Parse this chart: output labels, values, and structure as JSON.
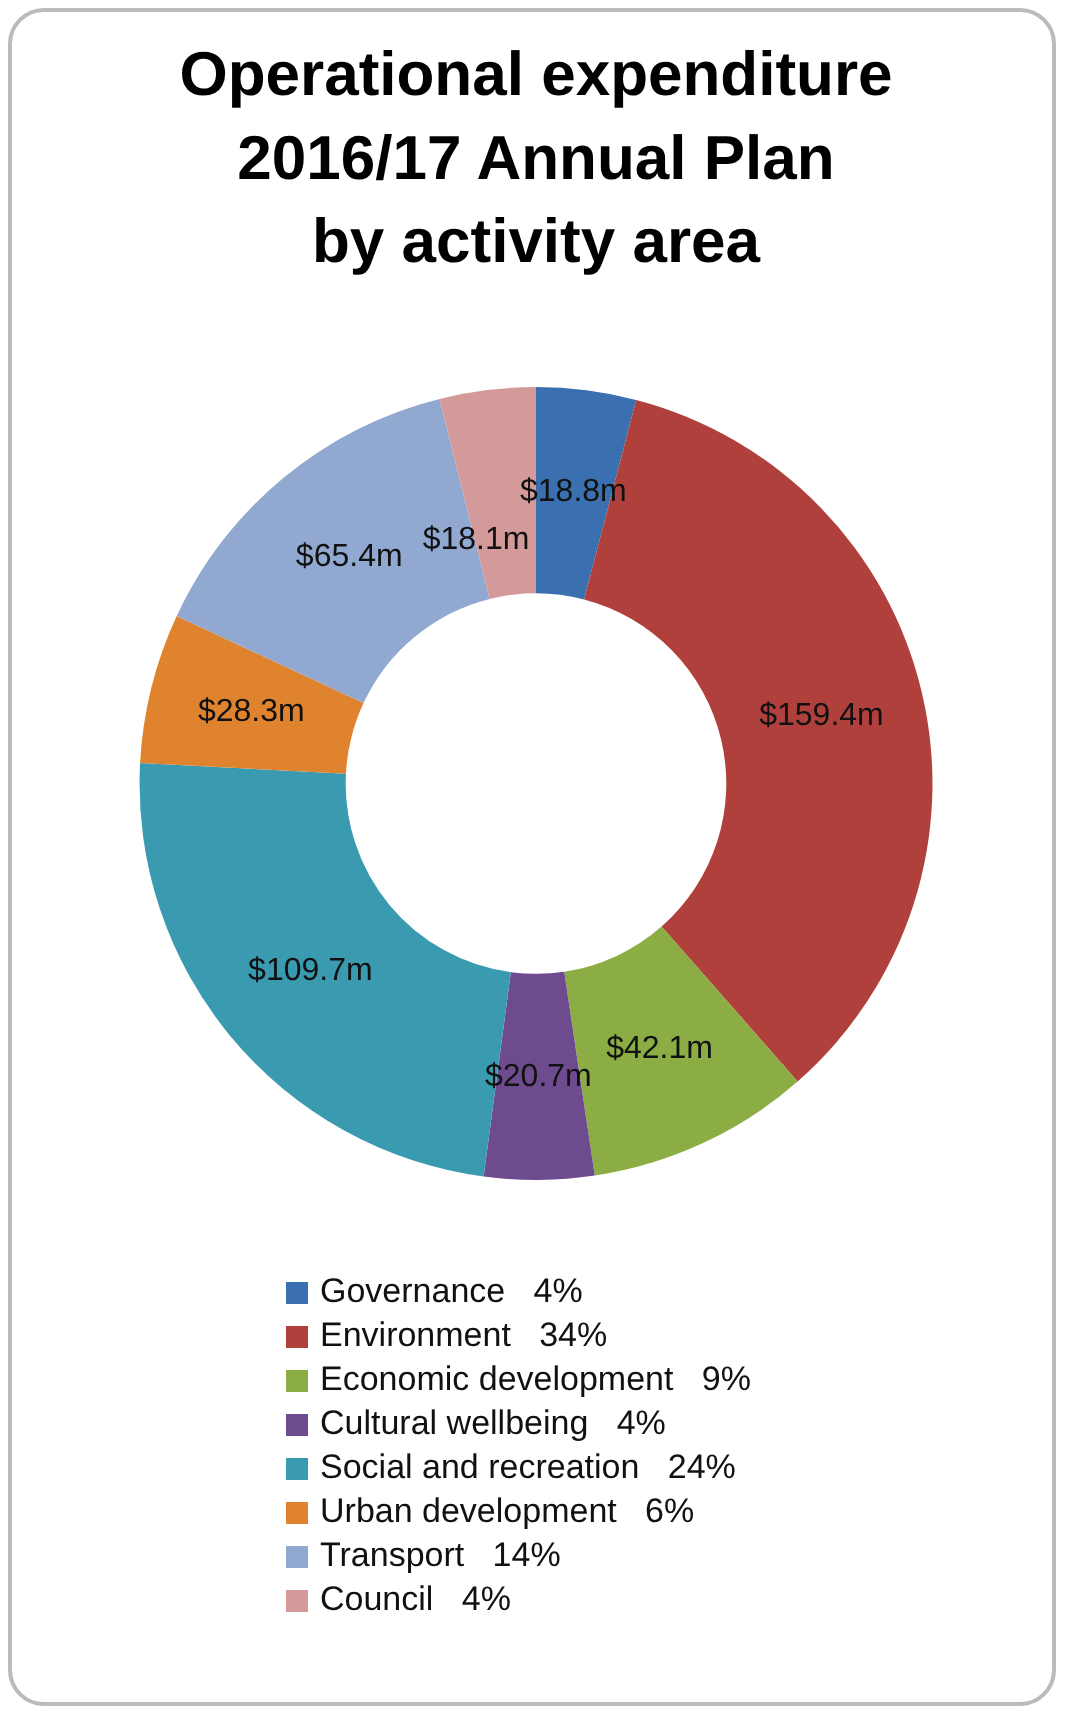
{
  "chart_data": {
    "type": "donut",
    "title": "Operational expenditure\n2016/17 Annual Plan\nby activity area",
    "categories": [
      "Governance   4%",
      "Environment   34%",
      "Economic development   9%",
      "Cultural wellbeing   4%",
      "Social and recreation   24%",
      "Urban development   6%",
      "Transport   14%",
      "Council   4%"
    ],
    "values": [
      18.8,
      159.4,
      42.1,
      20.7,
      109.7,
      28.3,
      65.4,
      18.1
    ],
    "value_labels": [
      "$18.8m",
      "$159.4m",
      "$42.1m",
      "$20.7m",
      "$109.7m",
      "$28.3m",
      "$65.4m",
      "$18.1m"
    ],
    "colors": [
      "#3a6fb0",
      "#b0403c",
      "#8cac44",
      "#6e4b8e",
      "#3a9bb0",
      "#e0832e",
      "#91a8d0",
      "#d49a9a"
    ],
    "legend": "bottom"
  }
}
